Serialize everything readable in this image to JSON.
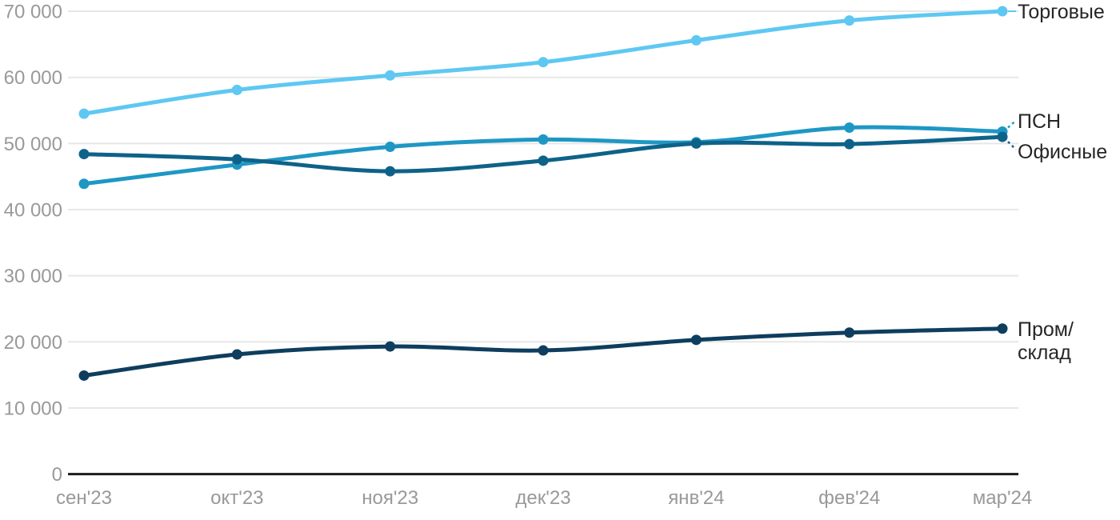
{
  "chart_data": {
    "type": "line",
    "title": "",
    "xlabel": "",
    "ylabel": "",
    "categories": [
      "сен'23",
      "окт'23",
      "ноя'23",
      "дек'23",
      "янв'24",
      "фев'24",
      "мар'24"
    ],
    "series": [
      {
        "name": "Торговые",
        "color": "#5ec8f2",
        "values": [
          54500,
          58100,
          60300,
          62300,
          65600,
          68600,
          70000
        ]
      },
      {
        "name": "ПСН",
        "color": "#1f97c4",
        "values": [
          43900,
          46800,
          49500,
          50600,
          50200,
          52400,
          51800
        ]
      },
      {
        "name": "Офисные",
        "color": "#0e6289",
        "values": [
          48400,
          47600,
          45800,
          47400,
          50000,
          49900,
          51000
        ]
      },
      {
        "name": "Пром/склад",
        "color": "#0e3d5e",
        "values": [
          14900,
          18100,
          19300,
          18700,
          20300,
          21400,
          22000
        ]
      }
    ],
    "ylim": [
      0,
      70000
    ],
    "ytick_step": 10000,
    "ytick_labels": [
      "0",
      "10 000",
      "20 000",
      "30 000",
      "40 000",
      "50 000",
      "60 000",
      "70 000"
    ],
    "grid": "horizontal",
    "legend_position": "end-of-line labels, right side"
  },
  "end_labels": {
    "torgovye": "Торговые",
    "psn": "ПСН",
    "ofisnye": "Офисные",
    "prom_line1": "Пром/",
    "prom_line2": "склад"
  },
  "styles": {
    "grid_color": "#e7e7e7",
    "axis_color": "#1c1c1c",
    "tick_label_color": "#999999",
    "series_label_color": "#262626",
    "background": "#ffffff"
  }
}
